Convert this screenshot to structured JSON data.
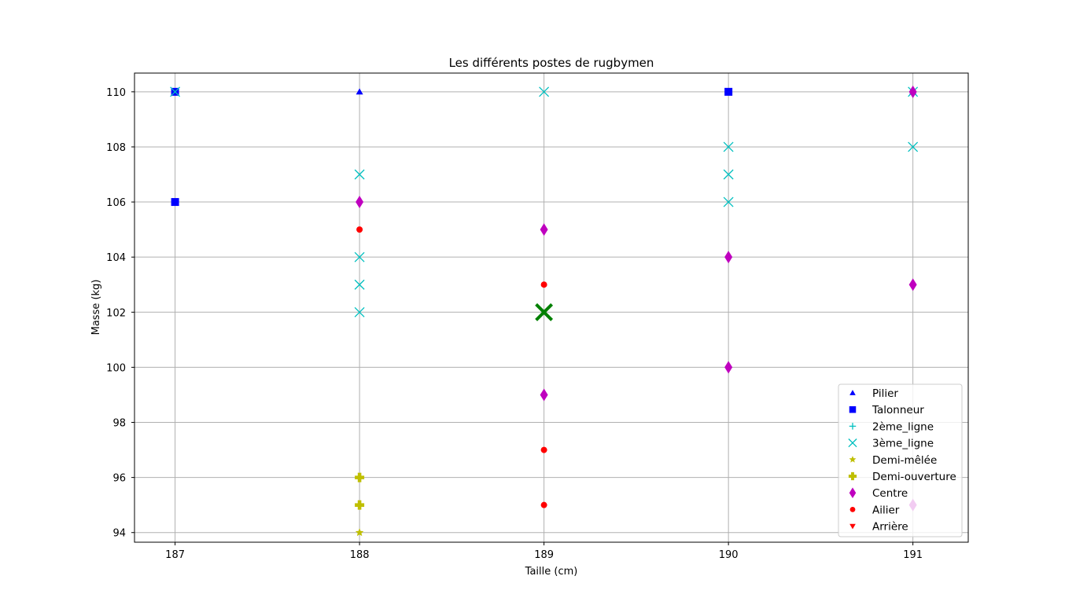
{
  "chart_data": {
    "type": "scatter",
    "title": "Les différents postes de rugbymen",
    "xlabel": "Taille (cm)",
    "ylabel": "Masse (kg)",
    "xlim": [
      186.78,
      191.3
    ],
    "ylim": [
      93.65,
      110.68
    ],
    "xticks": [
      "187",
      "188",
      "189",
      "190",
      "191"
    ],
    "yticks": [
      "94",
      "96",
      "98",
      "100",
      "102",
      "104",
      "106",
      "108",
      "110"
    ],
    "grid": true,
    "legend_position": "lower-right",
    "series": [
      {
        "name": "Pilier",
        "marker": "triangle-up",
        "color": "#0000ff",
        "points": [
          [
            187,
            110
          ],
          [
            188,
            110
          ],
          [
            190,
            110
          ],
          [
            191,
            110
          ]
        ]
      },
      {
        "name": "Talonneur",
        "marker": "square",
        "color": "#0000ff",
        "points": [
          [
            187,
            110
          ],
          [
            187,
            106
          ],
          [
            190,
            110
          ]
        ]
      },
      {
        "name": "2ème_ligne",
        "marker": "plus",
        "color": "#00bfbf",
        "points": []
      },
      {
        "name": "3ème_ligne",
        "marker": "x",
        "color": "#00bfbf",
        "points": [
          [
            187,
            110
          ],
          [
            188,
            107
          ],
          [
            188,
            104
          ],
          [
            188,
            103
          ],
          [
            188,
            102
          ],
          [
            189,
            110
          ],
          [
            190,
            108
          ],
          [
            190,
            107
          ],
          [
            190,
            106
          ],
          [
            191,
            110
          ],
          [
            191,
            108
          ]
        ]
      },
      {
        "name": "Demi-mêlée",
        "marker": "star",
        "color": "#bfbf00",
        "points": [
          [
            188,
            94
          ]
        ]
      },
      {
        "name": "Demi-ouverture",
        "marker": "plus-filled",
        "color": "#bfbf00",
        "points": [
          [
            188,
            96
          ],
          [
            188,
            95
          ]
        ]
      },
      {
        "name": "Centre",
        "marker": "thin-diamond",
        "color": "#bf00bf",
        "points": [
          [
            188,
            106
          ],
          [
            189,
            105
          ],
          [
            189,
            99
          ],
          [
            190,
            104
          ],
          [
            190,
            100
          ],
          [
            191,
            110
          ],
          [
            191,
            103
          ],
          [
            191,
            95
          ]
        ]
      },
      {
        "name": "Ailier",
        "marker": "circle",
        "color": "#ff0000",
        "points": [
          [
            188,
            105
          ],
          [
            189,
            103
          ],
          [
            189,
            97
          ],
          [
            189,
            95
          ]
        ]
      },
      {
        "name": "Arrière",
        "marker": "triangle-down",
        "color": "#ff0000",
        "points": []
      }
    ],
    "highlight": {
      "marker": "x-large",
      "color": "#008000",
      "point": [
        189,
        102
      ]
    }
  }
}
